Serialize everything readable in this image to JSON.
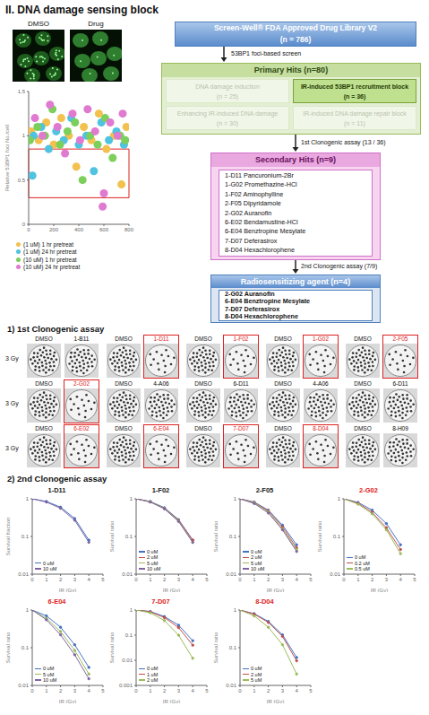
{
  "title": "II. DNA damage sensing block",
  "microscopy": {
    "labels": [
      "DMSO",
      "Drug"
    ]
  },
  "flowchart": {
    "library": "Screen-Well® FDA Approved Drug Library V2",
    "library_n": "(n = 786)",
    "step1": "53BP1 foci-based screen",
    "primary": {
      "title": "Primary Hits (n=80)",
      "groups": [
        {
          "label": "DNA damage induction",
          "n": "(n = 25)",
          "selected": false
        },
        {
          "label": "IR-induced 53BP1 recruitment block",
          "n": "(n = 36)",
          "selected": true
        },
        {
          "label": "Enhancing IR-induced DNA damage",
          "n": "(n = 30)",
          "selected": false
        },
        {
          "label": "IR-induced DNA damage repair block",
          "n": "(n = 11)",
          "selected": false
        }
      ]
    },
    "step2": "1st Clonogenic assay (13 / 36)",
    "secondary": {
      "title": "Secondary Hits (n=9)",
      "items": [
        [
          "1-D11",
          "Pancuronium-2Br"
        ],
        [
          "1-G02",
          "Promethazine-HCl"
        ],
        [
          "1-F02",
          "Aminophylline"
        ],
        [
          "2-F05",
          "Dipyridamole"
        ],
        [
          "2-G02",
          "Auranofin"
        ],
        [
          "6-E02",
          "Bendamustine-HCl"
        ],
        [
          "6-E04",
          "Benztropine Mesylate"
        ],
        [
          "7-D07",
          "Deferasirox"
        ],
        [
          "8-D04",
          "Hexachlorophene"
        ]
      ]
    },
    "step3": "2nd Clonogenic assay (7/9)",
    "final": {
      "title": "Radiosensitizing agent (n=4)",
      "items": [
        [
          "2-G02",
          "Auranofin"
        ],
        [
          "6-E04",
          "Benztropine Mesylate"
        ],
        [
          "7-D07",
          "Deferasirox"
        ],
        [
          "8-D04",
          "Hexachlorophene"
        ]
      ]
    }
  },
  "clonogenic_1": {
    "title": "1) 1st Clonogenic assay",
    "dose": "3 Gy",
    "control": "DMSO",
    "rows": [
      [
        "1-B11",
        "1-D11",
        "1-F02",
        "1-G02",
        "2-F05"
      ],
      [
        "2-G02",
        "4-A06",
        "6-D11",
        "4-A06",
        "6-D11"
      ],
      [
        "6-E02",
        "6-E04",
        "7-D07",
        "8-D04",
        "8-H09"
      ]
    ]
  },
  "clonogenic_2": {
    "title": "2) 2nd Clonogenic assay"
  },
  "chart_data": [
    {
      "type": "scatter",
      "y_label": "Relative 53BP1 foci No./cell",
      "xlim": [
        0,
        800
      ],
      "xticks": [
        0,
        200,
        400,
        600,
        800
      ],
      "ylim": [
        0,
        1.5
      ],
      "yticks": [
        0,
        0.5,
        1,
        1.5
      ],
      "hit_box": {
        "x": [
          0,
          800
        ],
        "y": [
          0.3,
          0.85
        ]
      },
      "legend": "bottom",
      "series": [
        {
          "name": "(1 uM) 1 hr pretreat",
          "color": "#f2c14e",
          "marker": "circle",
          "x": [
            20,
            80,
            140,
            200,
            260,
            320,
            380,
            440,
            500,
            560,
            620,
            680,
            740,
            780
          ],
          "values": [
            1.05,
            0.95,
            1.15,
            0.9,
            1.2,
            1.0,
            0.65,
            1.1,
            0.95,
            1.25,
            0.85,
            1.0,
            0.45,
            1.1
          ]
        },
        {
          "name": "(1 uM) 24 hr pretreat",
          "color": "#4fc3e0",
          "marker": "circle",
          "x": [
            40,
            100,
            160,
            220,
            280,
            340,
            400,
            460,
            520,
            580,
            640,
            700,
            760,
            30
          ],
          "values": [
            1.0,
            1.1,
            0.85,
            1.05,
            0.95,
            1.2,
            0.9,
            1.0,
            0.6,
            1.15,
            0.95,
            1.05,
            0.9,
            0.55
          ]
        },
        {
          "name": "(10 uM) 1 hr pretreat",
          "color": "#7ccf5a",
          "marker": "circle",
          "x": [
            10,
            70,
            130,
            190,
            250,
            310,
            370,
            430,
            490,
            550,
            610,
            670,
            730,
            770
          ],
          "values": [
            0.95,
            1.1,
            1.0,
            1.3,
            0.9,
            1.05,
            1.15,
            0.5,
            1.0,
            0.9,
            1.2,
            0.75,
            1.0,
            0.95
          ]
        },
        {
          "name": "(10 uM) 24 hr pretreat",
          "color": "#e07ad0",
          "marker": "circle",
          "x": [
            50,
            110,
            170,
            230,
            290,
            350,
            410,
            470,
            530,
            590,
            650,
            710,
            750,
            600
          ],
          "values": [
            1.2,
            1.0,
            1.35,
            1.1,
            0.8,
            1.25,
            0.95,
            1.3,
            1.05,
            0.2,
            1.15,
            1.0,
            1.25,
            0.35
          ]
        }
      ]
    },
    {
      "type": "line",
      "title": "1-D11",
      "x_label": "IR (Gy)",
      "y_label": "Survival fraction",
      "log": "y",
      "x": [
        0,
        1,
        2,
        3,
        4
      ],
      "xlim": [
        0,
        5
      ],
      "xticks": [
        0,
        1,
        2,
        3,
        4,
        5
      ],
      "ylim": [
        0.01,
        1
      ],
      "yticks": [
        0.01,
        0.1,
        1
      ],
      "legend": "bottom-left",
      "series": [
        {
          "name": "0 uM",
          "color": "#4472c4",
          "marker": "circle",
          "values": [
            1,
            0.85,
            0.6,
            0.3,
            0.08
          ]
        },
        {
          "name": "10 uM",
          "color": "#8064a2",
          "marker": "circle",
          "values": [
            1,
            0.82,
            0.56,
            0.27,
            0.07
          ]
        }
      ]
    },
    {
      "type": "line",
      "title": "1-F02",
      "x_label": "IR (Gy)",
      "y_label": "Survival ratio",
      "log": "y",
      "x": [
        0,
        1,
        2,
        3,
        4
      ],
      "xlim": [
        0,
        5
      ],
      "xticks": [
        0,
        1,
        2,
        3,
        4,
        5
      ],
      "ylim": [
        0.01,
        1
      ],
      "yticks": [
        0.01,
        0.1,
        1
      ],
      "legend": "bottom-left",
      "series": [
        {
          "name": "0 uM",
          "color": "#4472c4",
          "marker": "circle",
          "values": [
            1,
            0.85,
            0.58,
            0.28,
            0.08
          ]
        },
        {
          "name": "2 uM",
          "color": "#c0504d",
          "marker": "circle",
          "values": [
            1,
            0.83,
            0.56,
            0.27,
            0.08
          ]
        },
        {
          "name": "5 uM",
          "color": "#9bbb59",
          "marker": "circle",
          "values": [
            1,
            0.84,
            0.55,
            0.26,
            0.07
          ]
        },
        {
          "name": "10 uM",
          "color": "#8064a2",
          "marker": "circle",
          "values": [
            1,
            0.82,
            0.54,
            0.25,
            0.07
          ]
        }
      ]
    },
    {
      "type": "line",
      "title": "2-F05",
      "x_label": "IR (Gy)",
      "y_label": "Survival ratio",
      "log": "y",
      "x": [
        0,
        1,
        2,
        3,
        4
      ],
      "xlim": [
        0,
        5
      ],
      "xticks": [
        0,
        1,
        2,
        3,
        4,
        5
      ],
      "ylim": [
        0.01,
        1
      ],
      "yticks": [
        0.01,
        0.1,
        1
      ],
      "legend": "bottom-left",
      "series": [
        {
          "name": "0 uM",
          "color": "#4472c4",
          "marker": "circle",
          "values": [
            1,
            0.82,
            0.5,
            0.2,
            0.06
          ]
        },
        {
          "name": "2 uM",
          "color": "#c0504d",
          "marker": "circle",
          "values": [
            1,
            0.8,
            0.48,
            0.18,
            0.05
          ]
        },
        {
          "name": "5 uM",
          "color": "#9bbb59",
          "marker": "circle",
          "values": [
            1,
            0.78,
            0.45,
            0.16,
            0.045
          ]
        },
        {
          "name": "10 uM",
          "color": "#8064a2",
          "marker": "circle",
          "values": [
            1,
            0.75,
            0.42,
            0.15,
            0.04
          ]
        }
      ]
    },
    {
      "type": "line",
      "title": "2-G02",
      "x_label": "IR (Gy)",
      "y_label": "Survival ratio",
      "log": "y",
      "x": [
        0,
        1,
        2,
        3,
        4
      ],
      "xlim": [
        0,
        5
      ],
      "xticks": [
        0,
        1,
        2,
        3,
        4,
        5
      ],
      "ylim": [
        0.01,
        1
      ],
      "yticks": [
        0.01,
        0.1,
        1
      ],
      "legend": "bottom-left",
      "series": [
        {
          "name": "0 uM",
          "color": "#4472c4",
          "marker": "circle",
          "values": [
            1,
            0.8,
            0.5,
            0.22,
            0.06
          ]
        },
        {
          "name": "0.2 uM",
          "color": "#c0504d",
          "marker": "circle",
          "values": [
            1,
            0.76,
            0.44,
            0.17,
            0.045
          ]
        },
        {
          "name": "0.5 uM",
          "color": "#9bbb59",
          "marker": "circle",
          "values": [
            1,
            0.72,
            0.4,
            0.15,
            0.035
          ]
        }
      ]
    },
    {
      "type": "line",
      "title": "6-E04",
      "x_label": "IR (Gy)",
      "y_label": "Survival ratio",
      "log": "y",
      "x": [
        0,
        1,
        2,
        3,
        4
      ],
      "xlim": [
        0,
        5
      ],
      "xticks": [
        0,
        1,
        2,
        3,
        4,
        5
      ],
      "ylim": [
        0.01,
        1
      ],
      "yticks": [
        0.01,
        0.1,
        1
      ],
      "legend": "bottom-left",
      "series": [
        {
          "name": "0 uM",
          "color": "#4472c4",
          "marker": "circle",
          "values": [
            1,
            0.7,
            0.35,
            0.12,
            0.03
          ]
        },
        {
          "name": "5 uM",
          "color": "#9bbb59",
          "marker": "circle",
          "values": [
            1,
            0.6,
            0.27,
            0.085,
            0.02
          ]
        },
        {
          "name": "10 uM",
          "color": "#8064a2",
          "marker": "circle",
          "values": [
            1,
            0.55,
            0.22,
            0.065,
            0.015
          ]
        }
      ]
    },
    {
      "type": "line",
      "title": "7-D07",
      "x_label": "IR (Gy)",
      "y_label": "Survival ratio",
      "log": "y",
      "x": [
        0,
        1,
        2,
        3,
        4
      ],
      "xlim": [
        0,
        5
      ],
      "xticks": [
        0,
        1,
        2,
        3,
        4,
        5
      ],
      "ylim": [
        0.001,
        1
      ],
      "yticks": [
        0.001,
        0.01,
        0.1,
        1
      ],
      "legend": "bottom-left",
      "series": [
        {
          "name": "0 uM",
          "color": "#4472c4",
          "marker": "circle",
          "values": [
            1,
            0.88,
            0.55,
            0.25,
            0.06
          ]
        },
        {
          "name": "1 uM",
          "color": "#c0504d",
          "marker": "circle",
          "values": [
            1,
            0.85,
            0.5,
            0.2,
            0.04
          ]
        },
        {
          "name": "2 uM",
          "color": "#9bbb59",
          "marker": "circle",
          "values": [
            1,
            0.78,
            0.38,
            0.1,
            0.012
          ]
        }
      ]
    },
    {
      "type": "line",
      "title": "8-D04",
      "x_label": "IR (Gy)",
      "y_label": "Survival ratio",
      "log": "y",
      "x": [
        0,
        1,
        2,
        3,
        4
      ],
      "xlim": [
        0,
        5
      ],
      "xticks": [
        0,
        1,
        2,
        3,
        4,
        5
      ],
      "ylim": [
        0.01,
        1
      ],
      "yticks": [
        0.01,
        0.1,
        1
      ],
      "legend": "bottom-left",
      "series": [
        {
          "name": "0 uM",
          "color": "#4472c4",
          "marker": "circle",
          "values": [
            1,
            0.8,
            0.5,
            0.22,
            0.055
          ]
        },
        {
          "name": "2 uM",
          "color": "#c0504d",
          "marker": "circle",
          "values": [
            1,
            0.78,
            0.47,
            0.2,
            0.045
          ]
        },
        {
          "name": "5 uM",
          "color": "#9bbb59",
          "marker": "circle",
          "values": [
            1,
            0.7,
            0.35,
            0.12,
            0.02
          ]
        }
      ]
    }
  ]
}
